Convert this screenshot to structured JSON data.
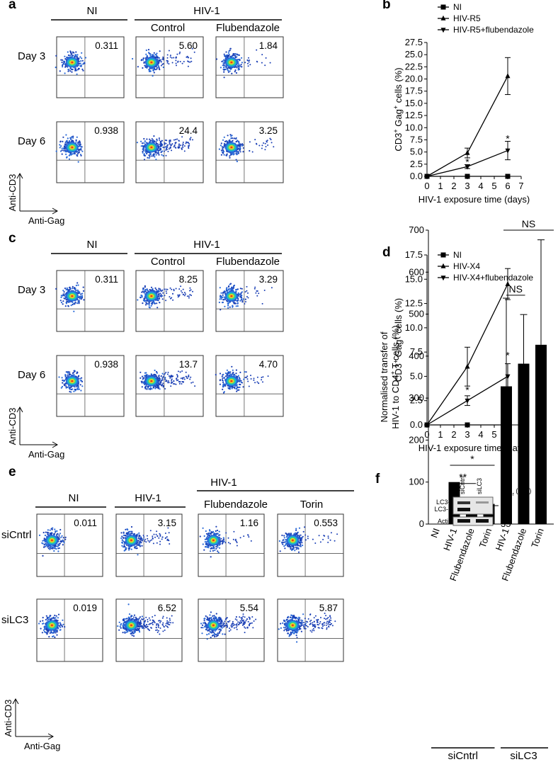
{
  "panels": {
    "a": {
      "label": "a",
      "headers": {
        "ni": "NI",
        "hiv": "HIV-1",
        "sub": [
          "Control",
          "Flubendazole"
        ]
      },
      "rows": [
        {
          "label": "Day 3",
          "values": [
            "0.311",
            "5.60",
            "1.84"
          ]
        },
        {
          "label": "Day 6",
          "values": [
            "0.938",
            "24.4",
            "3.25"
          ]
        }
      ],
      "yaxis": "Anti-CD3",
      "xaxis": "Anti-Gag"
    },
    "c": {
      "label": "c",
      "headers": {
        "ni": "NI",
        "hiv": "HIV-1",
        "sub": [
          "Control",
          "Flubendazole"
        ]
      },
      "rows": [
        {
          "label": "Day 3",
          "values": [
            "0.311",
            "8.25",
            "3.29"
          ]
        },
        {
          "label": "Day 6",
          "values": [
            "0.938",
            "13.7",
            "4.70"
          ]
        }
      ],
      "yaxis": "Anti-CD3",
      "xaxis": "Anti-Gag"
    },
    "e": {
      "label": "e",
      "headers": {
        "ni": "NI",
        "hiv1": "HIV-1",
        "hiv_span": "HIV-1",
        "sub": [
          "Flubendazole",
          "Torin"
        ]
      },
      "rows": [
        {
          "label": "siCntrl",
          "values": [
            "0.011",
            "3.15",
            "1.16",
            "0.553"
          ]
        },
        {
          "label": "siLC3",
          "values": [
            "0.019",
            "6.52",
            "5.54",
            "5.87"
          ]
        }
      ],
      "yaxis": "Anti-CD3",
      "xaxis": "Anti-Gag"
    },
    "b": {
      "label": "b"
    },
    "d": {
      "label": "d"
    },
    "f": {
      "label": "f",
      "blot": {
        "lanes": [
          "siCntrl",
          "siLC3"
        ],
        "mr_label": "M",
        "mr_sub": "r",
        "mr_unit": " (kDa)",
        "rows": [
          "LC3-I",
          "LC3-II",
          "Actin"
        ],
        "markers": [
          "15",
          "35"
        ]
      },
      "sig": [
        "NS",
        "NS",
        "**",
        "*"
      ],
      "groups": [
        "siCntrl",
        "siLC3"
      ]
    }
  },
  "chart_data": [
    {
      "id": "b",
      "type": "line",
      "xlabel": "HIV-1 exposure time (days)",
      "ylabel_parts": [
        "CD3",
        "+",
        " Gag",
        "+",
        " cells (%)"
      ],
      "x": [
        0,
        3,
        6
      ],
      "xlim": [
        0,
        7
      ],
      "xticks": [
        0,
        1,
        2,
        3,
        4,
        5,
        6,
        7
      ],
      "ylim": [
        0,
        27.5
      ],
      "yticks": [
        "0.0",
        "2.5",
        "5.0",
        "7.5",
        "10.0",
        "12.5",
        "15.0",
        "17.5",
        "20.0",
        "22.5",
        "25.0",
        "27.5"
      ],
      "series": [
        {
          "name": "NI",
          "marker": "square",
          "values": [
            0,
            0,
            0
          ],
          "err": [
            0,
            0,
            0
          ]
        },
        {
          "name": "HIV-R5",
          "marker": "triangle-up",
          "values": [
            0,
            4.8,
            20.6
          ],
          "err": [
            0,
            1.0,
            3.8
          ]
        },
        {
          "name": "HIV-R5+flubendazole",
          "marker": "triangle-down",
          "values": [
            0,
            2.0,
            5.3
          ],
          "err": [
            0,
            0.4,
            1.9
          ]
        }
      ],
      "annotations": [
        {
          "x": 3,
          "y": 3.0,
          "text": "*"
        },
        {
          "x": 3,
          "y": 1.7,
          "text": "*"
        },
        {
          "x": 6,
          "y": 7.8,
          "text": "*"
        }
      ],
      "legend": "top-left"
    },
    {
      "id": "d",
      "type": "line",
      "xlabel": "HIV-1 exposure time (days)",
      "ylabel_parts": [
        "CD3",
        "+",
        " Gag",
        "+",
        " cells (%)"
      ],
      "x": [
        0,
        3,
        6
      ],
      "xlim": [
        0,
        7
      ],
      "xticks": [
        0,
        1,
        2,
        3,
        4,
        5,
        6,
        7
      ],
      "ylim": [
        0,
        17.5
      ],
      "yticks": [
        "0.0",
        "2.5",
        "5.0",
        "7.5",
        "10.0",
        "12.5",
        "15.0",
        "17.5"
      ],
      "series": [
        {
          "name": "NI",
          "marker": "square",
          "values": [
            0,
            0,
            0
          ],
          "err": [
            0,
            0,
            0
          ]
        },
        {
          "name": "HIV-X4",
          "marker": "triangle-up",
          "values": [
            0,
            6.0,
            14.5
          ],
          "err": [
            0,
            2.0,
            1.6
          ]
        },
        {
          "name": "HIV-X4+flubendazole",
          "marker": "triangle-down",
          "values": [
            0,
            2.5,
            5.0
          ],
          "err": [
            0,
            0.5,
            1.3
          ]
        }
      ],
      "annotations": [
        {
          "x": 3,
          "y": 3.6,
          "text": "*"
        },
        {
          "x": 6,
          "y": 7.2,
          "text": "*"
        }
      ],
      "legend": "top-left"
    },
    {
      "id": "f",
      "type": "bar",
      "ylabel_lines": [
        "Normalised transfer of",
        "HIV-1 to CD4",
        "+",
        " T cells (%)"
      ],
      "categories": [
        "NI",
        "HIV-1",
        "Flubendazole",
        "Torin",
        "HIV-1",
        "Flubendazole",
        "Torin"
      ],
      "values": [
        0,
        100,
        45,
        48,
        328,
        382,
        427
      ],
      "err": [
        0,
        0,
        8,
        10,
        210,
        117,
        250
      ],
      "ylim": [
        0,
        700
      ],
      "yticks": [
        "0",
        "100",
        "200",
        "300",
        "400",
        "500",
        "600",
        "700"
      ],
      "group_labels": [
        "siCntrl",
        "siLC3"
      ]
    }
  ]
}
